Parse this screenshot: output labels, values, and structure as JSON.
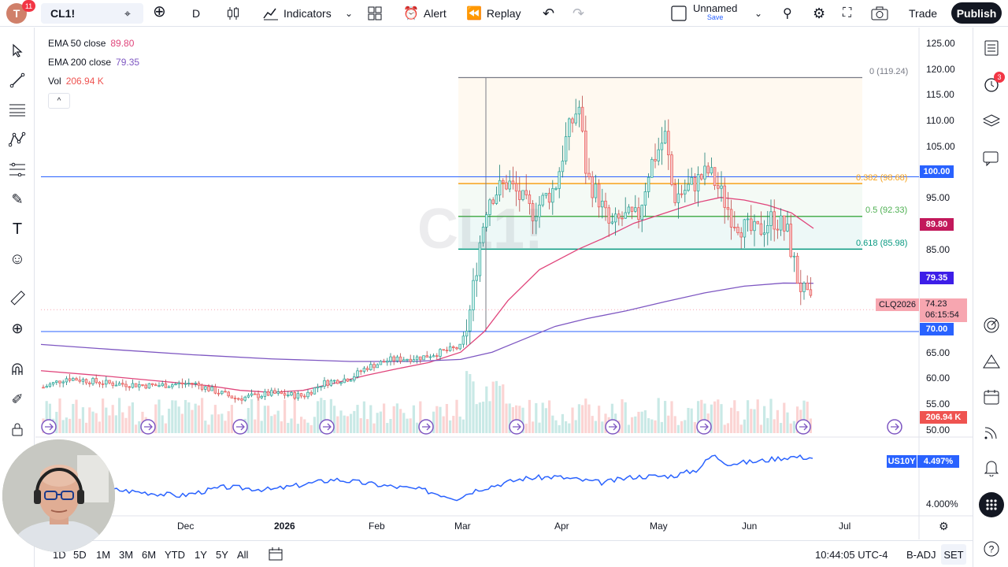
{
  "topbar": {
    "logo_letter": "T",
    "notif_count": "11",
    "symbol": "CL1!",
    "interval": "D",
    "indicators": "Indicators",
    "alert": "Alert",
    "replay": "Replay",
    "layout_name": "Unnamed",
    "save_label": "Save",
    "trade": "Trade",
    "publish": "Publish"
  },
  "legend": {
    "ema50_label": "EMA 50 close",
    "ema50_value": "89.80",
    "ema200_label": "EMA 200 close",
    "ema200_value": "79.35",
    "vol_label": "Vol",
    "vol_value": "206.94 K",
    "collapse": "^"
  },
  "watermark": "CL1!",
  "fib": {
    "level0": "0 (119.24)",
    "level382": "0.382 (98.68)",
    "level5": "0.5 (92.33)",
    "level618": "0.618 (85.98)"
  },
  "price_axis": [
    "125.00",
    "120.00",
    "115.00",
    "110.00",
    "105.00",
    "95.00",
    "85.00",
    "65.00",
    "60.00",
    "55.00",
    "50.00"
  ],
  "price_tags": {
    "p100": "100.00",
    "ema50": "89.80",
    "ema200": "79.35",
    "last": "74.23",
    "countdown": "06:15:54",
    "contract": "CLQ2026",
    "p70": "70.00",
    "vol": "206.94 K"
  },
  "lower_pane": {
    "symbol": "US10Y",
    "value": "4.497%",
    "axis_label": "4.000%"
  },
  "time_axis": [
    "Dec",
    "2026",
    "Feb",
    "Mar",
    "Apr",
    "May",
    "Jun",
    "Jul"
  ],
  "bottombar": {
    "ranges": [
      "1D",
      "5D",
      "1M",
      "3M",
      "6M",
      "YTD",
      "1Y",
      "5Y",
      "All"
    ],
    "clock": "10:44:05 UTC-4",
    "badj": "B-ADJ",
    "set": "SET"
  },
  "right_badge": "3",
  "colors": {
    "up": "#26a69a",
    "down": "#ef5350",
    "ema50": "#e0457b",
    "ema200": "#7e57c2",
    "fib382": "#f7a21b",
    "fib5": "#4caf50",
    "fib618": "#089981",
    "hline": "#2962ff",
    "us10y": "#2962ff"
  }
}
